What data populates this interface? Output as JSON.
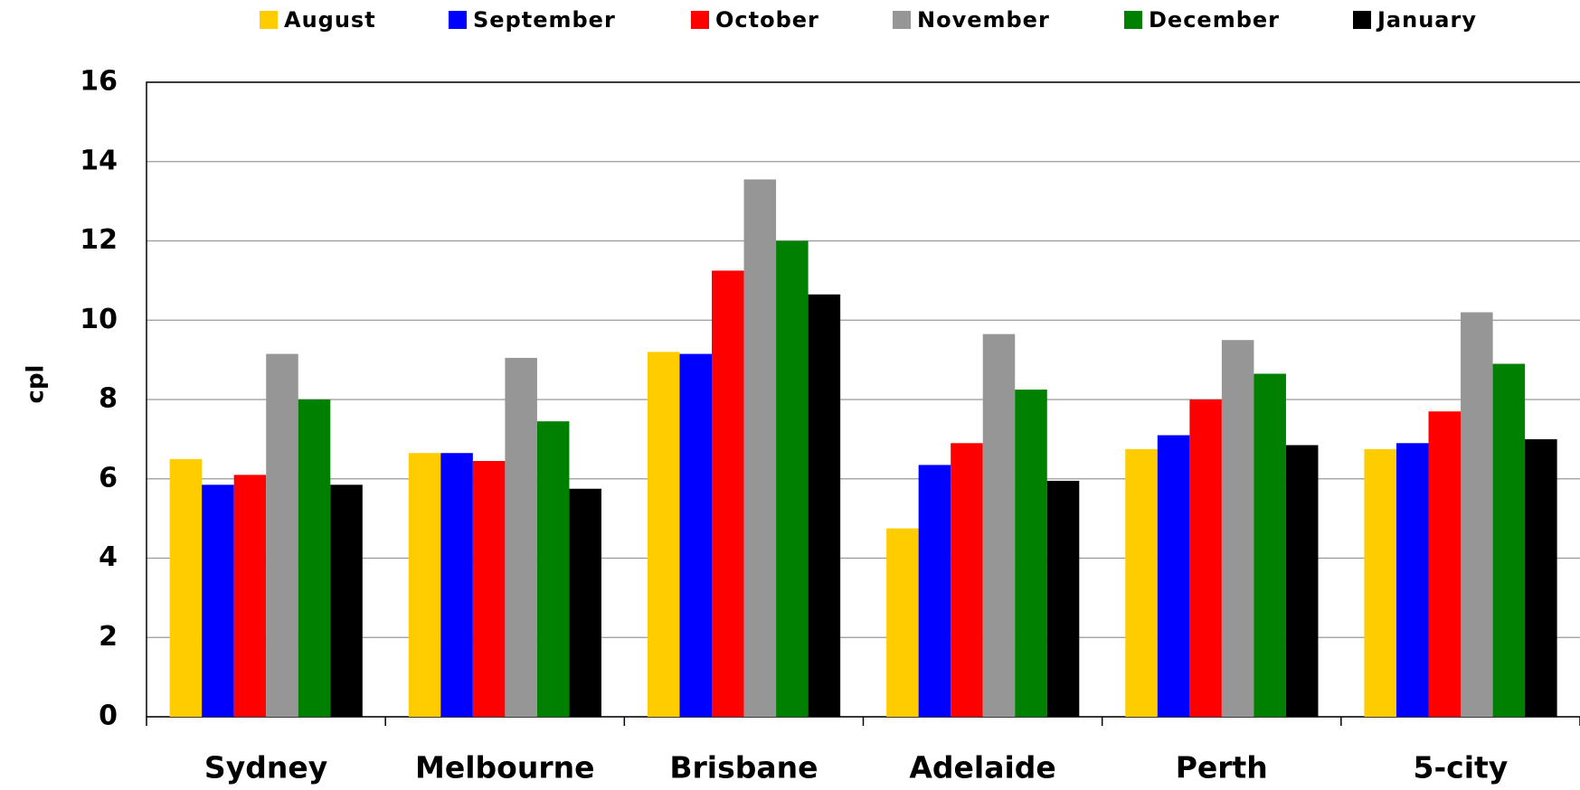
{
  "chart_data": {
    "type": "bar",
    "y_label": "cpl",
    "categories": [
      "Sydney",
      "Melbourne",
      "Brisbane",
      "Adelaide",
      "Perth",
      "5-city"
    ],
    "series": [
      {
        "name": "August",
        "color": "#ffcc00",
        "values": [
          6.5,
          6.65,
          9.2,
          4.75,
          6.75,
          6.75
        ]
      },
      {
        "name": "September",
        "color": "#0000ff",
        "values": [
          5.85,
          6.65,
          9.15,
          6.35,
          7.1,
          6.9
        ]
      },
      {
        "name": "October",
        "color": "#ff0000",
        "values": [
          6.1,
          6.45,
          11.25,
          6.9,
          8.0,
          7.7
        ]
      },
      {
        "name": "November",
        "color": "#969696",
        "values": [
          9.15,
          9.05,
          13.55,
          9.65,
          9.5,
          10.2
        ]
      },
      {
        "name": "December",
        "color": "#008000",
        "values": [
          8.0,
          7.45,
          12.0,
          8.25,
          8.65,
          8.9
        ]
      },
      {
        "name": "January",
        "color": "#000000",
        "values": [
          5.85,
          5.75,
          10.65,
          5.95,
          6.85,
          7.0
        ]
      }
    ],
    "ylim": [
      0,
      16
    ],
    "yticks": [
      0,
      2,
      4,
      6,
      8,
      10,
      12,
      14,
      16
    ],
    "grid": true,
    "legend": "top"
  }
}
